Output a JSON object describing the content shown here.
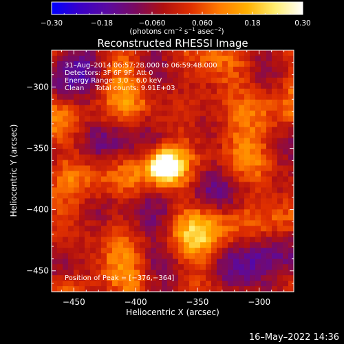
{
  "chart_data": {
    "type": "heatmap",
    "title": "Reconstructed RHESSI Image",
    "xlabel": "Heliocentric X (arcsec)",
    "ylabel": "Heliocentric Y (arcsec)",
    "xlim": [
      -468,
      -272
    ],
    "ylim": [
      -467,
      -270
    ],
    "x_ticks": [
      -450,
      -400,
      -350,
      -300
    ],
    "y_ticks": [
      -300,
      -350,
      -400,
      -450
    ],
    "x_tick_labels": [
      "−450",
      "−400",
      "−350",
      "−300"
    ],
    "y_tick_labels": [
      "−300",
      "−350",
      "−400",
      "−450"
    ],
    "colorbar": {
      "range": [
        -0.3,
        0.3
      ],
      "ticks": [
        -0.3,
        -0.18,
        -0.06,
        0.06,
        0.18,
        0.3
      ],
      "tick_labels": [
        "−0.30",
        "−0.18",
        "−0.060",
        "0.060",
        "0.18",
        "0.30"
      ],
      "unit_main": "(photons cm",
      "unit_sup1": "−2",
      "unit_mid1": " s",
      "unit_sup2": "−1",
      "unit_mid2": " asec",
      "unit_sup3": "−2",
      "unit_end": ")",
      "colors": [
        "#0000ff",
        "#3a00c8",
        "#5a0aa0",
        "#7a0a60",
        "#b01010",
        "#e03000",
        "#ff7a00",
        "#ffb000",
        "#ffee70",
        "#ffffff"
      ]
    },
    "annotations": [
      "31–Aug–2014 06:57:28.000 to 06:59:48.000",
      "Detectors: 3F 6F 9F, Att 0",
      "Energy Range: 3.0 – 6.0 keV",
      "Clean     Total counts: 9.91E+03"
    ],
    "peak_label": "Position of Peak = [−376,−364]",
    "peak": [
      -376,
      -364
    ],
    "peak_value": 0.3
  },
  "footer": {
    "timestamp": "16–May–2022 14:36"
  }
}
